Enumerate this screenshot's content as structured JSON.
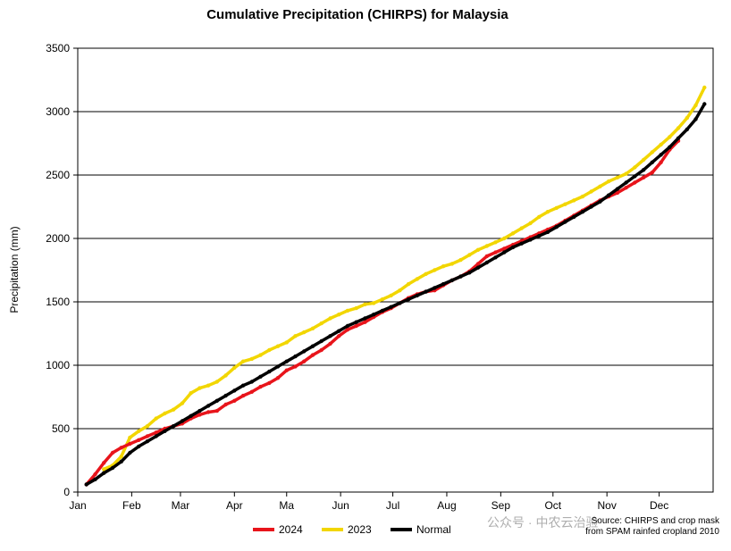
{
  "chart_data": {
    "type": "line",
    "title": "Cumulative Precipitation (CHIRPS) for Malaysia",
    "ylabel": "Precipitation (mm)",
    "xlabel": "",
    "ylim": [
      0,
      3500
    ],
    "yticks": [
      0,
      500,
      1000,
      1500,
      2000,
      2500,
      3000,
      3500
    ],
    "xlim": [
      0,
      365
    ],
    "months": [
      {
        "label": "Jan",
        "day": 0
      },
      {
        "label": "Feb",
        "day": 31
      },
      {
        "label": "Mar",
        "day": 59
      },
      {
        "label": "Apr",
        "day": 90
      },
      {
        "label": "Ma",
        "day": 120
      },
      {
        "label": "Jun",
        "day": 151
      },
      {
        "label": "Jul",
        "day": 181
      },
      {
        "label": "Aug",
        "day": 212
      },
      {
        "label": "Sep",
        "day": 243
      },
      {
        "label": "Oct",
        "day": 273
      },
      {
        "label": "Nov",
        "day": 304
      },
      {
        "label": "Dec",
        "day": 334
      }
    ],
    "grid": "horizontal",
    "legend": "bottom",
    "series": [
      {
        "name": "2024",
        "color": "#e8141b",
        "x": [
          5,
          10,
          15,
          20,
          25,
          30,
          35,
          40,
          45,
          50,
          55,
          60,
          65,
          70,
          75,
          80,
          85,
          90,
          95,
          100,
          105,
          110,
          115,
          120,
          125,
          130,
          135,
          140,
          145,
          150,
          155,
          160,
          165,
          170,
          175,
          180,
          185,
          190,
          195,
          200,
          205,
          210,
          215,
          220,
          225,
          230,
          235,
          240,
          245,
          250,
          255,
          260,
          265,
          270,
          275,
          280,
          285,
          290,
          295,
          300,
          305,
          310,
          315,
          320,
          325,
          330,
          335,
          340,
          345
        ],
        "y": [
          60,
          140,
          230,
          310,
          350,
          380,
          410,
          440,
          470,
          500,
          520,
          540,
          580,
          610,
          630,
          640,
          690,
          720,
          760,
          790,
          830,
          860,
          900,
          960,
          990,
          1030,
          1080,
          1120,
          1170,
          1230,
          1280,
          1310,
          1340,
          1380,
          1420,
          1450,
          1490,
          1530,
          1560,
          1580,
          1590,
          1630,
          1670,
          1700,
          1740,
          1800,
          1860,
          1890,
          1920,
          1950,
          1980,
          2010,
          2040,
          2070,
          2100,
          2140,
          2180,
          2220,
          2260,
          2300,
          2330,
          2360,
          2400,
          2440,
          2480,
          2520,
          2600,
          2700,
          2770
        ]
      },
      {
        "name": "2023",
        "color": "#f2d600",
        "x": [
          15,
          20,
          25,
          30,
          35,
          40,
          45,
          50,
          55,
          60,
          65,
          70,
          75,
          80,
          85,
          90,
          95,
          100,
          105,
          110,
          115,
          120,
          125,
          130,
          135,
          140,
          145,
          150,
          155,
          160,
          165,
          170,
          175,
          180,
          185,
          190,
          195,
          200,
          205,
          210,
          215,
          220,
          225,
          230,
          235,
          240,
          245,
          250,
          255,
          260,
          265,
          270,
          275,
          280,
          285,
          290,
          295,
          300,
          305,
          310,
          315,
          320,
          325,
          330,
          335,
          340,
          345,
          350,
          355,
          360
        ],
        "y": [
          180,
          210,
          280,
          430,
          480,
          520,
          580,
          620,
          650,
          700,
          780,
          820,
          840,
          870,
          920,
          980,
          1030,
          1050,
          1080,
          1120,
          1150,
          1180,
          1230,
          1260,
          1290,
          1330,
          1370,
          1400,
          1430,
          1450,
          1480,
          1490,
          1520,
          1550,
          1590,
          1640,
          1680,
          1720,
          1750,
          1780,
          1800,
          1830,
          1870,
          1910,
          1940,
          1970,
          2000,
          2040,
          2080,
          2120,
          2170,
          2210,
          2240,
          2270,
          2300,
          2330,
          2370,
          2410,
          2450,
          2480,
          2510,
          2560,
          2620,
          2680,
          2740,
          2800,
          2870,
          2950,
          3050,
          3190
        ]
      },
      {
        "name": "Normal",
        "color": "#000000",
        "x": [
          5,
          10,
          15,
          20,
          25,
          30,
          35,
          40,
          45,
          50,
          55,
          60,
          65,
          70,
          75,
          80,
          85,
          90,
          95,
          100,
          105,
          110,
          115,
          120,
          125,
          130,
          135,
          140,
          145,
          150,
          155,
          160,
          165,
          170,
          175,
          180,
          185,
          190,
          195,
          200,
          205,
          210,
          215,
          220,
          225,
          230,
          235,
          240,
          245,
          250,
          255,
          260,
          265,
          270,
          275,
          280,
          285,
          290,
          295,
          300,
          305,
          310,
          315,
          320,
          325,
          330,
          335,
          340,
          345,
          350,
          355,
          360
        ],
        "y": [
          60,
          100,
          150,
          190,
          240,
          310,
          360,
          400,
          440,
          480,
          520,
          560,
          600,
          640,
          680,
          720,
          760,
          800,
          840,
          870,
          910,
          950,
          990,
          1030,
          1070,
          1110,
          1150,
          1190,
          1230,
          1270,
          1310,
          1340,
          1370,
          1400,
          1430,
          1460,
          1490,
          1520,
          1550,
          1580,
          1610,
          1640,
          1670,
          1700,
          1730,
          1770,
          1810,
          1850,
          1890,
          1930,
          1960,
          1990,
          2020,
          2050,
          2090,
          2130,
          2170,
          2210,
          2250,
          2290,
          2340,
          2390,
          2440,
          2490,
          2540,
          2600,
          2660,
          2720,
          2790,
          2860,
          2940,
          3060
        ]
      }
    ],
    "source_note": [
      "Source: CHIRPS and crop mask",
      "from SPAM rainfed cropland 2010"
    ],
    "watermark_text": "公众号 · 中农云治验"
  }
}
